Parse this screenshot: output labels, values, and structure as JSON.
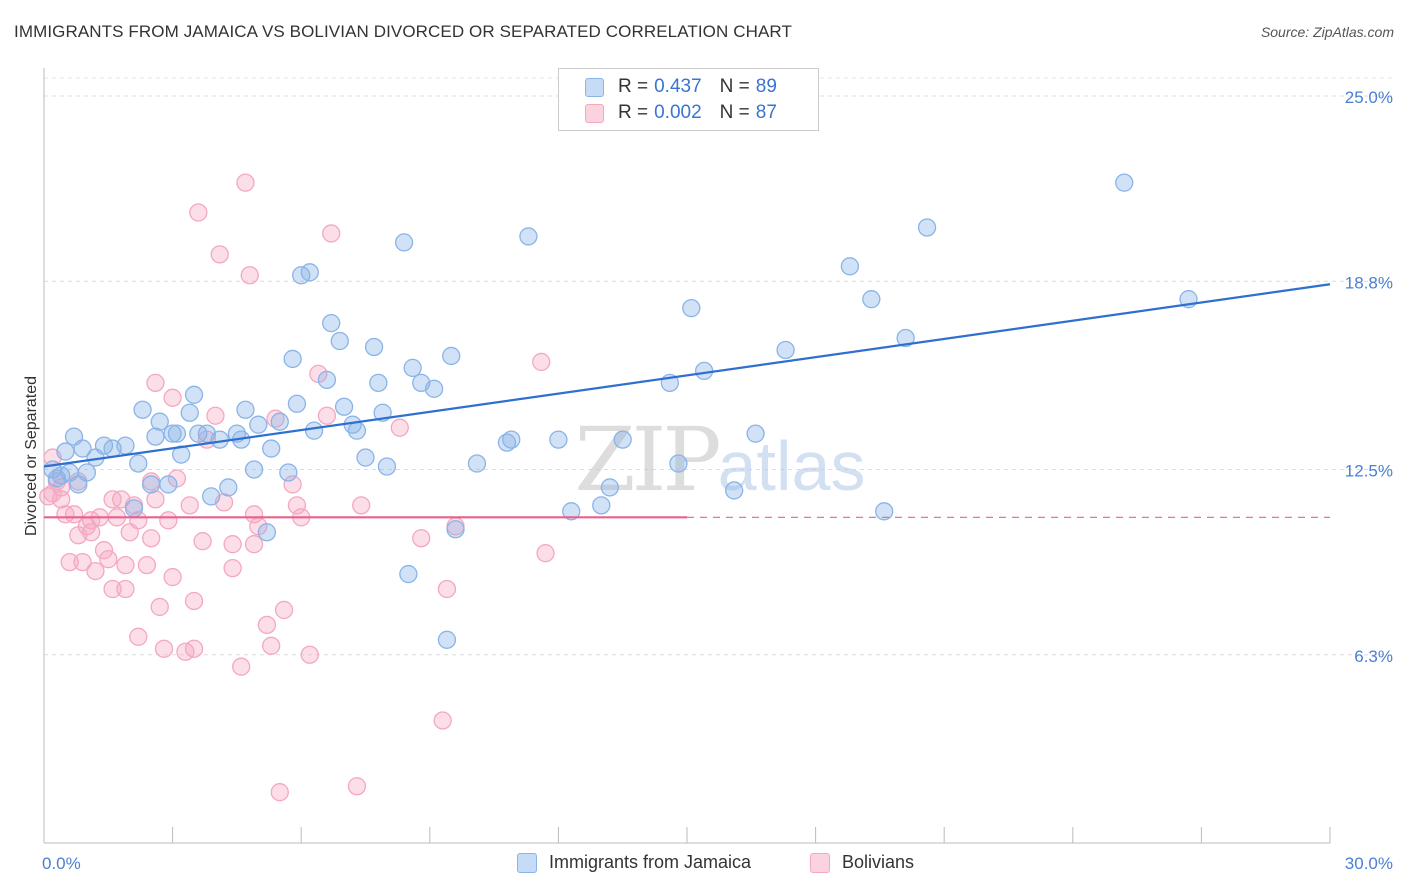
{
  "title": "IMMIGRANTS FROM JAMAICA VS BOLIVIAN DIVORCED OR SEPARATED CORRELATION CHART",
  "source": "Source: ZipAtlas.com",
  "watermark": "ZIPatlas",
  "legend": {
    "rows": [
      {
        "r_label": "R =",
        "r_value": "0.437",
        "n_label": "N =",
        "n_value": "89"
      },
      {
        "r_label": "R =",
        "r_value": "0.002",
        "n_label": "N =",
        "n_value": "87"
      }
    ]
  },
  "chart_data": {
    "type": "scatter",
    "title": "IMMIGRANTS FROM JAMAICA VS BOLIVIAN DIVORCED OR SEPARATED CORRELATION CHART",
    "xlabel": "",
    "ylabel": "Divorced or Separated",
    "xlim": [
      0,
      30
    ],
    "ylim": [
      0,
      26.5
    ],
    "x_tick_labels": [
      "0.0%",
      "30.0%"
    ],
    "y_ticks": [
      6.3,
      12.5,
      18.8,
      25.0
    ],
    "y_tick_labels": [
      "6.3%",
      "12.5%",
      "18.8%",
      "25.0%"
    ],
    "grid": "horizontal dashed",
    "legend_position": "top-center",
    "series": [
      {
        "name": "Immigrants from Jamaica",
        "color": "#8ab4e8",
        "line_color": "#2f6fd0",
        "r": 0.437,
        "n": 89,
        "trend": {
          "x": [
            0,
            30
          ],
          "y": [
            12.6,
            18.7
          ]
        },
        "points": [
          [
            0.2,
            12.5
          ],
          [
            0.3,
            12.2
          ],
          [
            0.4,
            12.3
          ],
          [
            0.5,
            13.1
          ],
          [
            0.6,
            12.4
          ],
          [
            0.7,
            13.6
          ],
          [
            0.8,
            12.0
          ],
          [
            0.9,
            13.2
          ],
          [
            1.0,
            12.4
          ],
          [
            1.2,
            12.9
          ],
          [
            1.4,
            13.3
          ],
          [
            1.6,
            13.2
          ],
          [
            1.9,
            13.3
          ],
          [
            2.1,
            11.2
          ],
          [
            2.2,
            12.7
          ],
          [
            2.3,
            14.5
          ],
          [
            2.5,
            12.0
          ],
          [
            2.6,
            13.6
          ],
          [
            2.7,
            14.1
          ],
          [
            2.9,
            12.0
          ],
          [
            3.0,
            13.7
          ],
          [
            3.1,
            13.7
          ],
          [
            3.2,
            13.0
          ],
          [
            3.4,
            14.4
          ],
          [
            3.5,
            15.0
          ],
          [
            3.6,
            13.7
          ],
          [
            3.8,
            13.7
          ],
          [
            3.9,
            11.6
          ],
          [
            4.1,
            13.5
          ],
          [
            4.3,
            11.9
          ],
          [
            4.5,
            13.7
          ],
          [
            4.6,
            13.5
          ],
          [
            4.7,
            14.5
          ],
          [
            4.9,
            12.5
          ],
          [
            5.0,
            14.0
          ],
          [
            5.2,
            10.4
          ],
          [
            5.3,
            13.2
          ],
          [
            5.5,
            14.1
          ],
          [
            5.7,
            12.4
          ],
          [
            5.8,
            16.2
          ],
          [
            5.9,
            14.7
          ],
          [
            6.0,
            19.0
          ],
          [
            6.2,
            19.1
          ],
          [
            6.3,
            13.8
          ],
          [
            6.6,
            15.5
          ],
          [
            6.7,
            17.4
          ],
          [
            6.9,
            16.8
          ],
          [
            7.0,
            14.6
          ],
          [
            7.2,
            14.0
          ],
          [
            7.3,
            13.8
          ],
          [
            7.5,
            12.9
          ],
          [
            7.7,
            16.6
          ],
          [
            7.8,
            15.4
          ],
          [
            7.9,
            14.4
          ],
          [
            8.0,
            12.6
          ],
          [
            8.4,
            20.1
          ],
          [
            8.6,
            15.9
          ],
          [
            8.8,
            15.4
          ],
          [
            9.1,
            15.2
          ],
          [
            9.4,
            6.8
          ],
          [
            9.5,
            16.3
          ],
          [
            9.6,
            10.5
          ],
          [
            8.5,
            9.0
          ],
          [
            10.1,
            12.7
          ],
          [
            10.8,
            13.4
          ],
          [
            10.9,
            13.5
          ],
          [
            11.3,
            20.3
          ],
          [
            12.0,
            13.5
          ],
          [
            12.3,
            11.1
          ],
          [
            13.0,
            11.3
          ],
          [
            13.2,
            11.9
          ],
          [
            13.5,
            13.5
          ],
          [
            14.6,
            15.4
          ],
          [
            14.8,
            12.7
          ],
          [
            15.1,
            17.9
          ],
          [
            15.4,
            15.8
          ],
          [
            16.1,
            11.8
          ],
          [
            16.6,
            13.7
          ],
          [
            17.3,
            16.5
          ],
          [
            18.8,
            19.3
          ],
          [
            19.3,
            18.2
          ],
          [
            19.6,
            11.1
          ],
          [
            20.1,
            16.9
          ],
          [
            20.6,
            20.6
          ],
          [
            25.2,
            22.1
          ],
          [
            26.7,
            18.2
          ]
        ]
      },
      {
        "name": "Bolivians",
        "color": "#f4a8c0",
        "line_color": "#e8608f",
        "r": 0.002,
        "n": 87,
        "trend": {
          "x": [
            0,
            30
          ],
          "y": [
            10.9,
            10.9
          ]
        },
        "points": [
          [
            0.1,
            11.6
          ],
          [
            0.2,
            11.7
          ],
          [
            0.2,
            12.9
          ],
          [
            0.3,
            12.1
          ],
          [
            0.4,
            11.9
          ],
          [
            0.4,
            11.5
          ],
          [
            0.5,
            11.0
          ],
          [
            0.6,
            9.4
          ],
          [
            0.7,
            11.0
          ],
          [
            0.8,
            12.1
          ],
          [
            0.8,
            10.3
          ],
          [
            0.9,
            9.4
          ],
          [
            1.0,
            10.6
          ],
          [
            1.1,
            10.8
          ],
          [
            1.1,
            10.4
          ],
          [
            1.2,
            9.1
          ],
          [
            1.3,
            10.9
          ],
          [
            1.4,
            9.8
          ],
          [
            1.5,
            9.5
          ],
          [
            1.6,
            11.5
          ],
          [
            1.6,
            8.5
          ],
          [
            1.7,
            10.9
          ],
          [
            1.8,
            11.5
          ],
          [
            1.9,
            8.5
          ],
          [
            1.9,
            9.3
          ],
          [
            2.0,
            10.4
          ],
          [
            2.1,
            11.3
          ],
          [
            2.2,
            6.9
          ],
          [
            2.2,
            10.8
          ],
          [
            2.4,
            9.3
          ],
          [
            2.5,
            12.1
          ],
          [
            2.5,
            10.2
          ],
          [
            2.6,
            15.4
          ],
          [
            2.6,
            11.5
          ],
          [
            2.7,
            7.9
          ],
          [
            2.8,
            6.5
          ],
          [
            2.9,
            10.8
          ],
          [
            3.0,
            14.9
          ],
          [
            3.0,
            8.9
          ],
          [
            3.1,
            12.2
          ],
          [
            3.3,
            6.4
          ],
          [
            3.4,
            11.3
          ],
          [
            3.5,
            6.5
          ],
          [
            3.5,
            8.1
          ],
          [
            3.6,
            21.1
          ],
          [
            3.7,
            10.1
          ],
          [
            3.8,
            13.5
          ],
          [
            4.0,
            14.3
          ],
          [
            4.1,
            19.7
          ],
          [
            4.2,
            11.4
          ],
          [
            4.4,
            9.2
          ],
          [
            4.4,
            10.0
          ],
          [
            4.6,
            5.9
          ],
          [
            4.7,
            22.1
          ],
          [
            4.8,
            19.0
          ],
          [
            4.9,
            11.0
          ],
          [
            4.9,
            10.0
          ],
          [
            5.0,
            10.6
          ],
          [
            5.2,
            7.3
          ],
          [
            5.3,
            6.6
          ],
          [
            5.4,
            14.2
          ],
          [
            5.5,
            1.7
          ],
          [
            5.6,
            7.8
          ],
          [
            5.8,
            12.0
          ],
          [
            5.9,
            11.3
          ],
          [
            6.0,
            10.9
          ],
          [
            6.2,
            6.3
          ],
          [
            6.4,
            15.7
          ],
          [
            6.6,
            14.3
          ],
          [
            6.7,
            20.4
          ],
          [
            7.3,
            1.9
          ],
          [
            7.4,
            11.3
          ],
          [
            8.3,
            13.9
          ],
          [
            8.8,
            10.2
          ],
          [
            9.3,
            4.1
          ],
          [
            9.4,
            8.5
          ],
          [
            9.6,
            10.6
          ],
          [
            11.6,
            16.1
          ],
          [
            11.7,
            9.7
          ]
        ]
      }
    ]
  }
}
